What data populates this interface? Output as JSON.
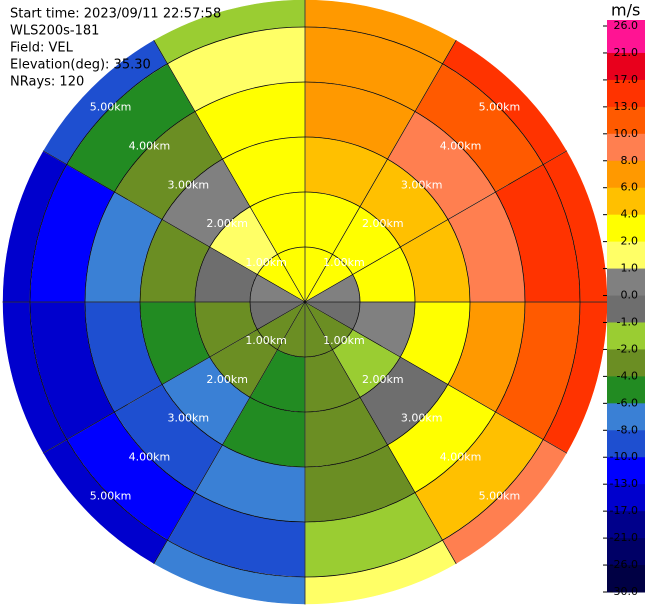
{
  "chart_data": {
    "type": "ppi",
    "info": [
      "Start time: 2023/09/11 22:57:58",
      "WLS200s-181",
      "Field: VEL",
      "Elevation(deg): 35.30",
      "NRays: 120"
    ],
    "azimuths": [
      15,
      45,
      75,
      105,
      135,
      165,
      195,
      225,
      255,
      285,
      315,
      345
    ],
    "range_edges_km": [
      0,
      1,
      2,
      3,
      4,
      5,
      5.5
    ],
    "values": [
      [
        2.9,
        4.0,
        5.4,
        7.1,
        8.0,
        6.8
      ],
      [
        2.1,
        3.6,
        6.0,
        9.7,
        12.7,
        13.1
      ],
      [
        0.8,
        2.3,
        4.9,
        9.7,
        13.9,
        15.9
      ],
      [
        -0.8,
        0.3,
        2.5,
        7.1,
        11.5,
        14.5
      ],
      [
        -2.1,
        -1.7,
        -0.5,
        2.6,
        5.9,
        9.2
      ],
      [
        -2.9,
        -3.3,
        -3.4,
        -2.6,
        -1.2,
        1.4
      ],
      [
        -2.9,
        -4.0,
        -5.4,
        -7.1,
        -8.0,
        -6.8
      ],
      [
        -2.1,
        -3.6,
        -6.0,
        -9.7,
        -12.7,
        -13.1
      ],
      [
        -0.8,
        -2.3,
        -4.9,
        -9.7,
        -13.9,
        -15.9
      ],
      [
        0.8,
        -0.3,
        -2.5,
        -7.1,
        -11.5,
        -14.5
      ],
      [
        2.1,
        1.7,
        0.5,
        -2.6,
        -5.9,
        -9.2
      ],
      [
        2.9,
        3.3,
        3.4,
        2.6,
        1.2,
        -1.4
      ]
    ],
    "range_rings": [
      {
        "value": 1,
        "label": "1.00km"
      },
      {
        "value": 2,
        "label": "2.00km"
      },
      {
        "value": 3,
        "label": "3.00km"
      },
      {
        "value": 4,
        "label": "4.00km"
      },
      {
        "value": 5,
        "label": "5.00km"
      }
    ],
    "colorbar": {
      "title": "m/s",
      "ticks": [
        {
          "value": 26,
          "label": "26.0"
        },
        {
          "value": 21,
          "label": "21.0"
        },
        {
          "value": 17,
          "label": "17.0"
        },
        {
          "value": 13,
          "label": "13.0"
        },
        {
          "value": 10,
          "label": "10.0"
        },
        {
          "value": 8,
          "label": "8.0"
        },
        {
          "value": 6,
          "label": "6.0"
        },
        {
          "value": 4,
          "label": "4.0"
        },
        {
          "value": 2,
          "label": "2.0"
        },
        {
          "value": 1,
          "label": "1.0"
        },
        {
          "value": 0,
          "label": "0.0"
        },
        {
          "value": -1,
          "label": "-1.0"
        },
        {
          "value": -2,
          "label": "-2.0"
        },
        {
          "value": -4,
          "label": "-4.0"
        },
        {
          "value": -6,
          "label": "-6.0"
        },
        {
          "value": -8,
          "label": "-8.0"
        },
        {
          "value": -10,
          "label": "-10.0"
        },
        {
          "value": -13,
          "label": "-13.0"
        },
        {
          "value": -17,
          "label": "-17.0"
        },
        {
          "value": -21,
          "label": "-21.0"
        },
        {
          "value": -26,
          "label": "-26.0"
        },
        {
          "value": -30,
          "label": "-30.0"
        }
      ],
      "colors": [
        "#ff1493",
        "#e8001c",
        "#ff3300",
        "#ff5a00",
        "#ff7f50",
        "#ff9900",
        "#ffc000",
        "#ffff00",
        "#ffff66",
        "#808080",
        "#6e6e6e",
        "#9acd32",
        "#6b8e23",
        "#228b22",
        "#3a80d5",
        "#1e4fd0",
        "#0000ff",
        "#0000cd",
        "#00008b",
        "#000066",
        "#000044"
      ]
    }
  }
}
